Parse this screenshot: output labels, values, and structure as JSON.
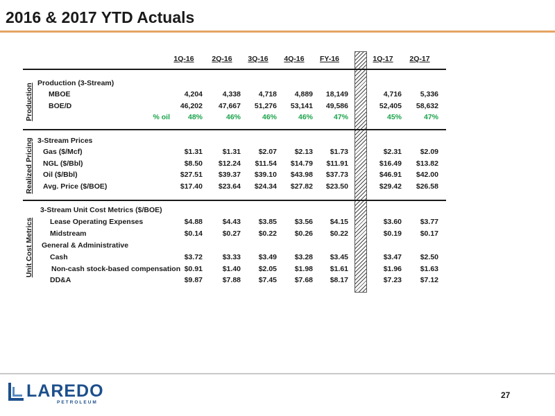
{
  "title": "2016 & 2017 YTD Actuals",
  "columns": [
    "1Q-16",
    "2Q-16",
    "3Q-16",
    "4Q-16",
    "FY-16",
    "1Q-17",
    "2Q-17"
  ],
  "sections": [
    {
      "label": "Production",
      "rows": [
        {
          "label": "Production (3-Stream)",
          "values": []
        },
        {
          "label": "MBOE",
          "values": [
            "4,204",
            "4,338",
            "4,718",
            "4,889",
            "18,149",
            "4,716",
            "5,336"
          ]
        },
        {
          "label": "BOE/D",
          "values": [
            "46,202",
            "47,667",
            "51,276",
            "53,141",
            "49,586",
            "52,405",
            "58,632"
          ]
        },
        {
          "label": "% oil",
          "values": [
            "48%",
            "46%",
            "46%",
            "46%",
            "47%",
            "45%",
            "47%"
          ],
          "green": true
        }
      ]
    },
    {
      "label": "Realized Pricing",
      "rows": [
        {
          "label": "3-Stream Prices",
          "values": []
        },
        {
          "label": "Gas ($/Mcf)",
          "values": [
            "$1.31",
            "$1.31",
            "$2.07",
            "$2.13",
            "$1.73",
            "$2.31",
            "$2.09"
          ]
        },
        {
          "label": "NGL ($/Bbl)",
          "values": [
            "$8.50",
            "$12.24",
            "$11.54",
            "$14.79",
            "$11.91",
            "$16.49",
            "$13.82"
          ]
        },
        {
          "label": "Oil ($/Bbl)",
          "values": [
            "$27.51",
            "$39.37",
            "$39.10",
            "$43.98",
            "$37.73",
            "$46.91",
            "$42.00"
          ]
        },
        {
          "label": "Avg. Price ($/BOE)",
          "values": [
            "$17.40",
            "$23.64",
            "$24.34",
            "$27.82",
            "$23.50",
            "$29.42",
            "$26.58"
          ]
        }
      ]
    },
    {
      "label": "Unit Cost Metrics",
      "rows": [
        {
          "label": "3-Stream Unit Cost Metrics ($/BOE)",
          "values": []
        },
        {
          "label": "Lease Operating Expenses",
          "values": [
            "$4.88",
            "$4.43",
            "$3.85",
            "$3.56",
            "$4.15",
            "$3.60",
            "$3.77"
          ]
        },
        {
          "label": "Midstream",
          "values": [
            "$0.14",
            "$0.27",
            "$0.22",
            "$0.26",
            "$0.22",
            "$0.19",
            "$0.17"
          ]
        },
        {
          "label": "General & Administrative",
          "values": []
        },
        {
          "label": "Cash",
          "values": [
            "$3.72",
            "$3.33",
            "$3.49",
            "$3.28",
            "$3.45",
            "$3.47",
            "$2.50"
          ]
        },
        {
          "label": "Non-cash stock-based compensation",
          "values": [
            "$0.91",
            "$1.40",
            "$2.05",
            "$1.98",
            "$1.61",
            "$1.96",
            "$1.63"
          ]
        },
        {
          "label": "DD&A",
          "values": [
            "$9.87",
            "$7.88",
            "$7.45",
            "$7.68",
            "$8.17",
            "$7.23",
            "$7.12"
          ]
        }
      ]
    }
  ],
  "logo": {
    "word": "LAREDO",
    "sub": "PETROLEUM"
  },
  "page_number": "27",
  "colors": {
    "accent_rule": "#e4a462",
    "green_text": "#1aa34a",
    "logo_blue": "#1d4f8c"
  }
}
